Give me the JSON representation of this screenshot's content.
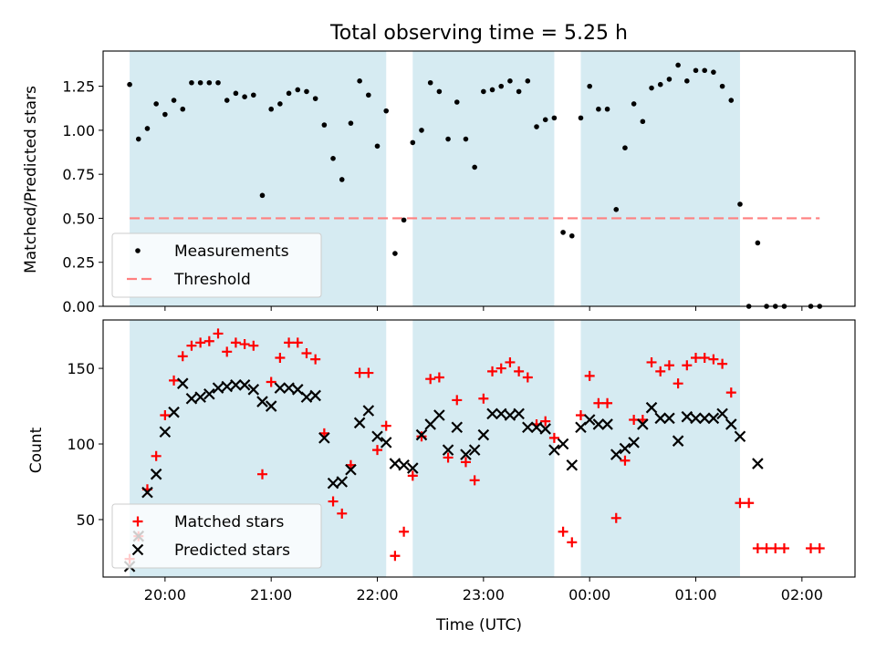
{
  "figure": {
    "title": "Total observing time = 5.25 h",
    "xlabel": "Time (UTC)"
  },
  "chart_data": [
    {
      "type": "scatter",
      "panel": "top",
      "title": "Total observing time = 5.25 h",
      "ylabel": "Matched/Predicted stars",
      "xlabel": "",
      "xlim": [
        "19:25",
        "02:30"
      ],
      "ylim": [
        0,
        1.45
      ],
      "yticks": [
        0.0,
        0.25,
        0.5,
        0.75,
        1.0,
        1.25
      ],
      "ytick_labels": [
        "0.00",
        "0.25",
        "0.50",
        "0.75",
        "1.00",
        "1.25"
      ],
      "xticks": [
        "20:00",
        "21:00",
        "22:00",
        "23:00",
        "00:00",
        "01:00",
        "02:00"
      ],
      "grid": false,
      "legend_position": "lower-left",
      "shaded_intervals": [
        [
          "19:40",
          "22:05"
        ],
        [
          "22:20",
          "23:40"
        ],
        [
          "23:55",
          "01:25"
        ]
      ],
      "shade_color": "#add8e6",
      "threshold": {
        "name": "Threshold",
        "value": 0.5,
        "x_range": [
          "19:40",
          "02:10"
        ],
        "color": "#ff7f7f"
      },
      "series": [
        {
          "name": "Measurements",
          "marker": "dot",
          "color": "#000000",
          "points": [
            [
              "19:40",
              1.26
            ],
            [
              "19:45",
              0.95
            ],
            [
              "19:50",
              1.01
            ],
            [
              "19:55",
              1.15
            ],
            [
              "20:00",
              1.09
            ],
            [
              "20:05",
              1.17
            ],
            [
              "20:10",
              1.12
            ],
            [
              "20:15",
              1.27
            ],
            [
              "20:20",
              1.27
            ],
            [
              "20:25",
              1.27
            ],
            [
              "20:30",
              1.27
            ],
            [
              "20:35",
              1.17
            ],
            [
              "20:40",
              1.21
            ],
            [
              "20:45",
              1.19
            ],
            [
              "20:50",
              1.2
            ],
            [
              "20:55",
              0.63
            ],
            [
              "21:00",
              1.12
            ],
            [
              "21:05",
              1.15
            ],
            [
              "21:10",
              1.21
            ],
            [
              "21:15",
              1.23
            ],
            [
              "21:20",
              1.22
            ],
            [
              "21:25",
              1.18
            ],
            [
              "21:30",
              1.03
            ],
            [
              "21:35",
              0.84
            ],
            [
              "21:40",
              0.72
            ],
            [
              "21:45",
              1.04
            ],
            [
              "21:50",
              1.28
            ],
            [
              "21:55",
              1.2
            ],
            [
              "22:00",
              0.91
            ],
            [
              "22:05",
              1.11
            ],
            [
              "22:10",
              0.3
            ],
            [
              "22:15",
              0.49
            ],
            [
              "22:20",
              0.93
            ],
            [
              "22:25",
              1.0
            ],
            [
              "22:30",
              1.27
            ],
            [
              "22:35",
              1.22
            ],
            [
              "22:40",
              0.95
            ],
            [
              "22:45",
              1.16
            ],
            [
              "22:50",
              0.95
            ],
            [
              "22:55",
              0.79
            ],
            [
              "23:00",
              1.22
            ],
            [
              "23:05",
              1.23
            ],
            [
              "23:10",
              1.25
            ],
            [
              "23:15",
              1.28
            ],
            [
              "23:20",
              1.22
            ],
            [
              "23:25",
              1.28
            ],
            [
              "23:30",
              1.02
            ],
            [
              "23:35",
              1.06
            ],
            [
              "23:40",
              1.07
            ],
            [
              "23:45",
              0.42
            ],
            [
              "23:50",
              0.4
            ],
            [
              "23:55",
              1.07
            ],
            [
              "00:00",
              1.25
            ],
            [
              "00:05",
              1.12
            ],
            [
              "00:10",
              1.12
            ],
            [
              "00:15",
              0.55
            ],
            [
              "00:20",
              0.9
            ],
            [
              "00:25",
              1.15
            ],
            [
              "00:30",
              1.05
            ],
            [
              "00:35",
              1.24
            ],
            [
              "00:40",
              1.26
            ],
            [
              "00:45",
              1.29
            ],
            [
              "00:50",
              1.37
            ],
            [
              "00:55",
              1.28
            ],
            [
              "01:00",
              1.34
            ],
            [
              "01:05",
              1.34
            ],
            [
              "01:10",
              1.33
            ],
            [
              "01:15",
              1.25
            ],
            [
              "01:20",
              1.17
            ],
            [
              "01:25",
              0.58
            ],
            [
              "01:30",
              0.0
            ],
            [
              "01:35",
              0.36
            ],
            [
              "01:40",
              0.0
            ],
            [
              "01:45",
              0.0
            ],
            [
              "01:50",
              0.0
            ],
            [
              "02:05",
              0.0
            ],
            [
              "02:10",
              0.0
            ]
          ]
        }
      ],
      "legend": [
        "Measurements",
        "Threshold"
      ]
    },
    {
      "type": "scatter",
      "panel": "bottom",
      "title": "",
      "ylabel": "Count",
      "xlabel": "Time (UTC)",
      "xlim": [
        "19:25",
        "02:30"
      ],
      "ylim": [
        12,
        182
      ],
      "yticks": [
        50,
        100,
        150
      ],
      "ytick_labels": [
        "50",
        "100",
        "150"
      ],
      "xticks": [
        "20:00",
        "21:00",
        "22:00",
        "23:00",
        "00:00",
        "01:00",
        "02:00"
      ],
      "grid": false,
      "legend_position": "lower-left",
      "shaded_intervals": [
        [
          "19:40",
          "22:05"
        ],
        [
          "22:20",
          "23:40"
        ],
        [
          "23:55",
          "01:25"
        ]
      ],
      "shade_color": "#add8e6",
      "series": [
        {
          "name": "Matched stars",
          "marker": "plus",
          "color": "#ff0000",
          "points": [
            [
              "19:40",
              24
            ],
            [
              "19:45",
              39
            ],
            [
              "19:50",
              70
            ],
            [
              "19:55",
              92
            ],
            [
              "20:00",
              119
            ],
            [
              "20:05",
              142
            ],
            [
              "20:10",
              158
            ],
            [
              "20:15",
              165
            ],
            [
              "20:20",
              167
            ],
            [
              "20:25",
              168
            ],
            [
              "20:30",
              173
            ],
            [
              "20:35",
              161
            ],
            [
              "20:40",
              167
            ],
            [
              "20:45",
              166
            ],
            [
              "20:50",
              165
            ],
            [
              "20:55",
              80
            ],
            [
              "21:00",
              141
            ],
            [
              "21:05",
              157
            ],
            [
              "21:10",
              167
            ],
            [
              "21:15",
              167
            ],
            [
              "21:20",
              160
            ],
            [
              "21:25",
              156
            ],
            [
              "21:30",
              107
            ],
            [
              "21:35",
              62
            ],
            [
              "21:40",
              54
            ],
            [
              "21:45",
              86
            ],
            [
              "21:50",
              147
            ],
            [
              "21:55",
              147
            ],
            [
              "22:00",
              96
            ],
            [
              "22:05",
              112
            ],
            [
              "22:10",
              26
            ],
            [
              "22:15",
              42
            ],
            [
              "22:20",
              79
            ],
            [
              "22:25",
              105
            ],
            [
              "22:30",
              143
            ],
            [
              "22:35",
              144
            ],
            [
              "22:40",
              91
            ],
            [
              "22:45",
              129
            ],
            [
              "22:50",
              88
            ],
            [
              "22:55",
              76
            ],
            [
              "23:00",
              130
            ],
            [
              "23:05",
              148
            ],
            [
              "23:10",
              150
            ],
            [
              "23:15",
              154
            ],
            [
              "23:20",
              148
            ],
            [
              "23:25",
              144
            ],
            [
              "23:30",
              113
            ],
            [
              "23:35",
              115
            ],
            [
              "23:40",
              104
            ],
            [
              "23:45",
              42
            ],
            [
              "23:50",
              35
            ],
            [
              "23:55",
              119
            ],
            [
              "00:00",
              145
            ],
            [
              "00:05",
              127
            ],
            [
              "00:10",
              127
            ],
            [
              "00:15",
              51
            ],
            [
              "00:20",
              89
            ],
            [
              "00:25",
              116
            ],
            [
              "00:30",
              116
            ],
            [
              "00:35",
              154
            ],
            [
              "00:40",
              148
            ],
            [
              "00:45",
              152
            ],
            [
              "00:50",
              140
            ],
            [
              "00:55",
              152
            ],
            [
              "01:00",
              157
            ],
            [
              "01:05",
              157
            ],
            [
              "01:10",
              156
            ],
            [
              "01:15",
              153
            ],
            [
              "01:20",
              134
            ],
            [
              "01:25",
              61
            ],
            [
              "01:30",
              61
            ],
            [
              "01:35",
              31
            ],
            [
              "01:40",
              31
            ],
            [
              "01:45",
              31
            ],
            [
              "01:50",
              31
            ],
            [
              "02:05",
              31
            ],
            [
              "02:10",
              31
            ]
          ]
        },
        {
          "name": "Predicted stars",
          "marker": "x",
          "color": "#000000",
          "points": [
            [
              "19:40",
              19
            ],
            [
              "19:45",
              39
            ],
            [
              "19:50",
              68
            ],
            [
              "19:55",
              80
            ],
            [
              "20:00",
              108
            ],
            [
              "20:05",
              121
            ],
            [
              "20:10",
              140
            ],
            [
              "20:15",
              130
            ],
            [
              "20:20",
              131
            ],
            [
              "20:25",
              133
            ],
            [
              "20:30",
              137
            ],
            [
              "20:35",
              138
            ],
            [
              "20:40",
              139
            ],
            [
              "20:45",
              139
            ],
            [
              "20:50",
              136
            ],
            [
              "20:55",
              128
            ],
            [
              "21:00",
              125
            ],
            [
              "21:05",
              137
            ],
            [
              "21:10",
              137
            ],
            [
              "21:15",
              136
            ],
            [
              "21:20",
              131
            ],
            [
              "21:25",
              132
            ],
            [
              "21:30",
              104
            ],
            [
              "21:35",
              74
            ],
            [
              "21:40",
              75
            ],
            [
              "21:45",
              83
            ],
            [
              "21:50",
              114
            ],
            [
              "21:55",
              122
            ],
            [
              "22:00",
              105
            ],
            [
              "22:05",
              101
            ],
            [
              "22:10",
              87
            ],
            [
              "22:15",
              86
            ],
            [
              "22:20",
              84
            ],
            [
              "22:25",
              106
            ],
            [
              "22:30",
              113
            ],
            [
              "22:35",
              119
            ],
            [
              "22:40",
              96
            ],
            [
              "22:45",
              111
            ],
            [
              "22:50",
              93
            ],
            [
              "22:55",
              96
            ],
            [
              "23:00",
              106
            ],
            [
              "23:05",
              120
            ],
            [
              "23:10",
              120
            ],
            [
              "23:15",
              119
            ],
            [
              "23:20",
              120
            ],
            [
              "23:25",
              111
            ],
            [
              "23:30",
              111
            ],
            [
              "23:35",
              110
            ],
            [
              "23:40",
              96
            ],
            [
              "23:45",
              100
            ],
            [
              "23:50",
              86
            ],
            [
              "23:55",
              111
            ],
            [
              "00:00",
              116
            ],
            [
              "00:05",
              113
            ],
            [
              "00:10",
              113
            ],
            [
              "00:15",
              93
            ],
            [
              "00:20",
              97
            ],
            [
              "00:25",
              101
            ],
            [
              "00:30",
              113
            ],
            [
              "00:35",
              124
            ],
            [
              "00:40",
              117
            ],
            [
              "00:45",
              117
            ],
            [
              "00:50",
              102
            ],
            [
              "00:55",
              118
            ],
            [
              "01:00",
              117
            ],
            [
              "01:05",
              117
            ],
            [
              "01:10",
              117
            ],
            [
              "01:15",
              120
            ],
            [
              "01:20",
              113
            ],
            [
              "01:25",
              105
            ],
            [
              "01:35",
              87
            ]
          ]
        }
      ],
      "legend": [
        "Matched stars",
        "Predicted stars"
      ]
    }
  ]
}
